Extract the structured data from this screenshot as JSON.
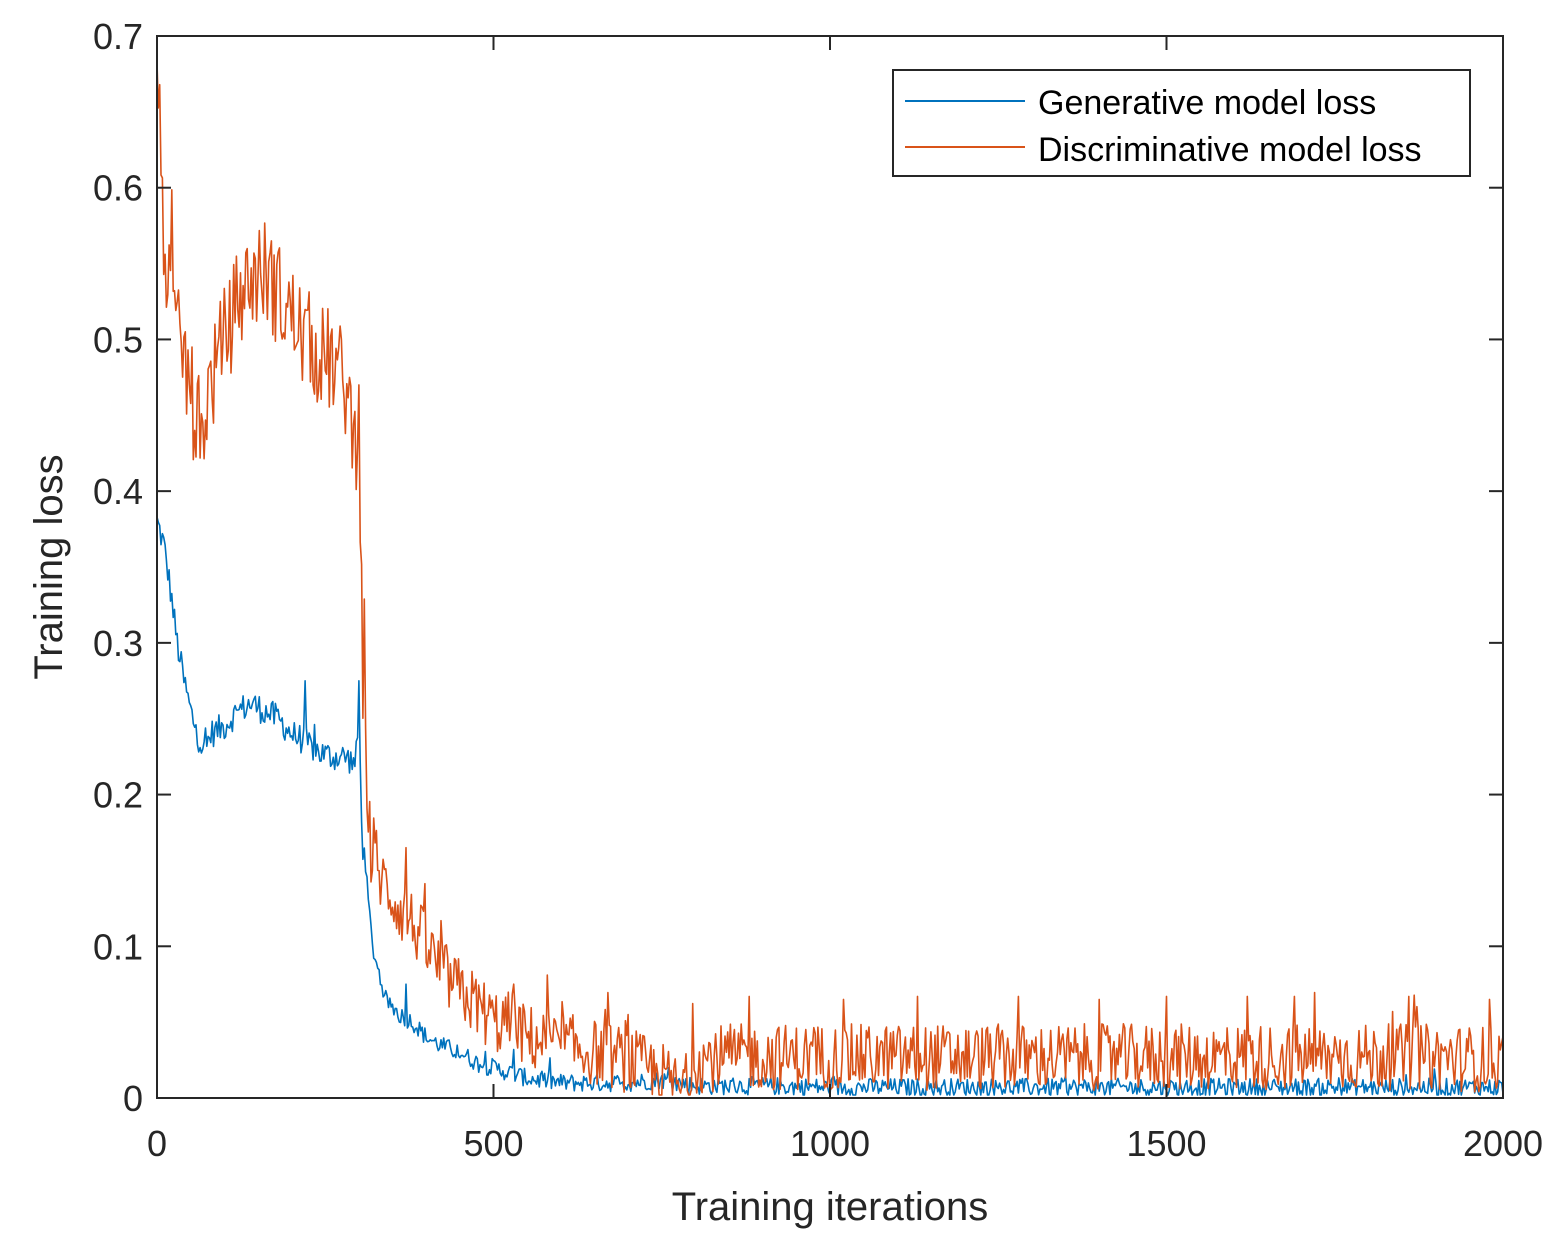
{
  "chart_data": {
    "type": "line",
    "title": "",
    "xlabel": "Training iterations",
    "ylabel": "Training loss",
    "xlim": [
      0,
      2000
    ],
    "ylim": [
      0,
      0.7
    ],
    "xticks": [
      0,
      500,
      1000,
      1500,
      2000
    ],
    "xtick_labels": [
      "0",
      "500",
      "1000",
      "1500",
      "2000"
    ],
    "yticks": [
      0,
      0.1,
      0.2,
      0.3,
      0.4,
      0.5,
      0.6,
      0.7
    ],
    "ytick_labels": [
      "0",
      "0.1",
      "0.2",
      "0.3",
      "0.4",
      "0.5",
      "0.6",
      "0.7"
    ],
    "grid": false,
    "box": true,
    "legend": {
      "placement": "top-right"
    },
    "series": [
      {
        "name": "Generative model loss",
        "color": "#0072BD",
        "x": [
          0,
          10,
          20,
          30,
          40,
          50,
          60,
          70,
          80,
          100,
          120,
          140,
          160,
          180,
          200,
          220,
          240,
          260,
          280,
          295,
          300,
          305,
          310,
          320,
          340,
          360,
          380,
          400,
          420,
          450,
          480,
          500,
          550,
          600,
          650,
          700,
          750,
          800,
          900,
          1000,
          1100,
          1200,
          1300,
          1400,
          1500,
          1600,
          1700,
          1800,
          1900,
          2000
        ],
        "y": [
          0.38,
          0.365,
          0.335,
          0.3,
          0.275,
          0.255,
          0.24,
          0.228,
          0.24,
          0.245,
          0.255,
          0.26,
          0.255,
          0.25,
          0.24,
          0.235,
          0.228,
          0.225,
          0.225,
          0.22,
          0.25,
          0.17,
          0.15,
          0.1,
          0.065,
          0.055,
          0.05,
          0.04,
          0.035,
          0.03,
          0.022,
          0.02,
          0.013,
          0.01,
          0.01,
          0.01,
          0.012,
          0.008,
          0.008,
          0.007,
          0.007,
          0.007,
          0.007,
          0.007,
          0.007,
          0.007,
          0.007,
          0.007,
          0.007,
          0.007
        ],
        "noise": 0.006,
        "spikes": [
          [
            105,
            0.29
          ],
          [
            145,
            0.285
          ],
          [
            220,
            0.275
          ],
          [
            300,
            0.275
          ],
          [
            370,
            0.075
          ],
          [
            530,
            0.032
          ],
          [
            760,
            0.02
          ]
        ]
      },
      {
        "name": "Discriminative model loss",
        "color": "#D95319",
        "x": [
          0,
          5,
          10,
          20,
          30,
          40,
          50,
          60,
          65,
          70,
          80,
          90,
          100,
          120,
          140,
          160,
          180,
          200,
          220,
          240,
          260,
          280,
          295,
          300,
          305,
          310,
          320,
          340,
          360,
          380,
          400,
          420,
          450,
          480,
          500,
          520,
          550,
          600,
          650,
          700,
          750,
          780,
          790,
          800,
          850,
          900,
          1000,
          1100,
          1200,
          1300,
          1400,
          1500,
          1600,
          1700,
          1800,
          1900,
          2000
        ],
        "y": [
          0.69,
          0.62,
          0.57,
          0.52,
          0.5,
          0.49,
          0.465,
          0.44,
          0.425,
          0.45,
          0.47,
          0.485,
          0.5,
          0.525,
          0.54,
          0.545,
          0.53,
          0.515,
          0.5,
          0.49,
          0.485,
          0.47,
          0.43,
          0.46,
          0.29,
          0.22,
          0.155,
          0.14,
          0.125,
          0.115,
          0.1,
          0.085,
          0.07,
          0.06,
          0.05,
          0.05,
          0.04,
          0.035,
          0.03,
          0.025,
          0.015,
          0.005,
          0.01,
          0.025,
          0.027,
          0.027,
          0.027,
          0.027,
          0.027,
          0.027,
          0.027,
          0.027,
          0.027,
          0.027,
          0.027,
          0.027,
          0.025
        ],
        "noise": 0.022,
        "spikes": [
          [
            145,
            0.57
          ],
          [
            300,
            0.47
          ],
          [
            370,
            0.165
          ],
          [
            530,
            0.075
          ],
          [
            700,
            0.055
          ],
          [
            880,
            0.067
          ],
          [
            1020,
            0.065
          ],
          [
            1130,
            0.067
          ],
          [
            1280,
            0.067
          ],
          [
            1400,
            0.065
          ],
          [
            1500,
            0.067
          ],
          [
            1620,
            0.067
          ],
          [
            1690,
            0.067
          ],
          [
            1860,
            0.067
          ],
          [
            1980,
            0.065
          ]
        ]
      }
    ]
  }
}
